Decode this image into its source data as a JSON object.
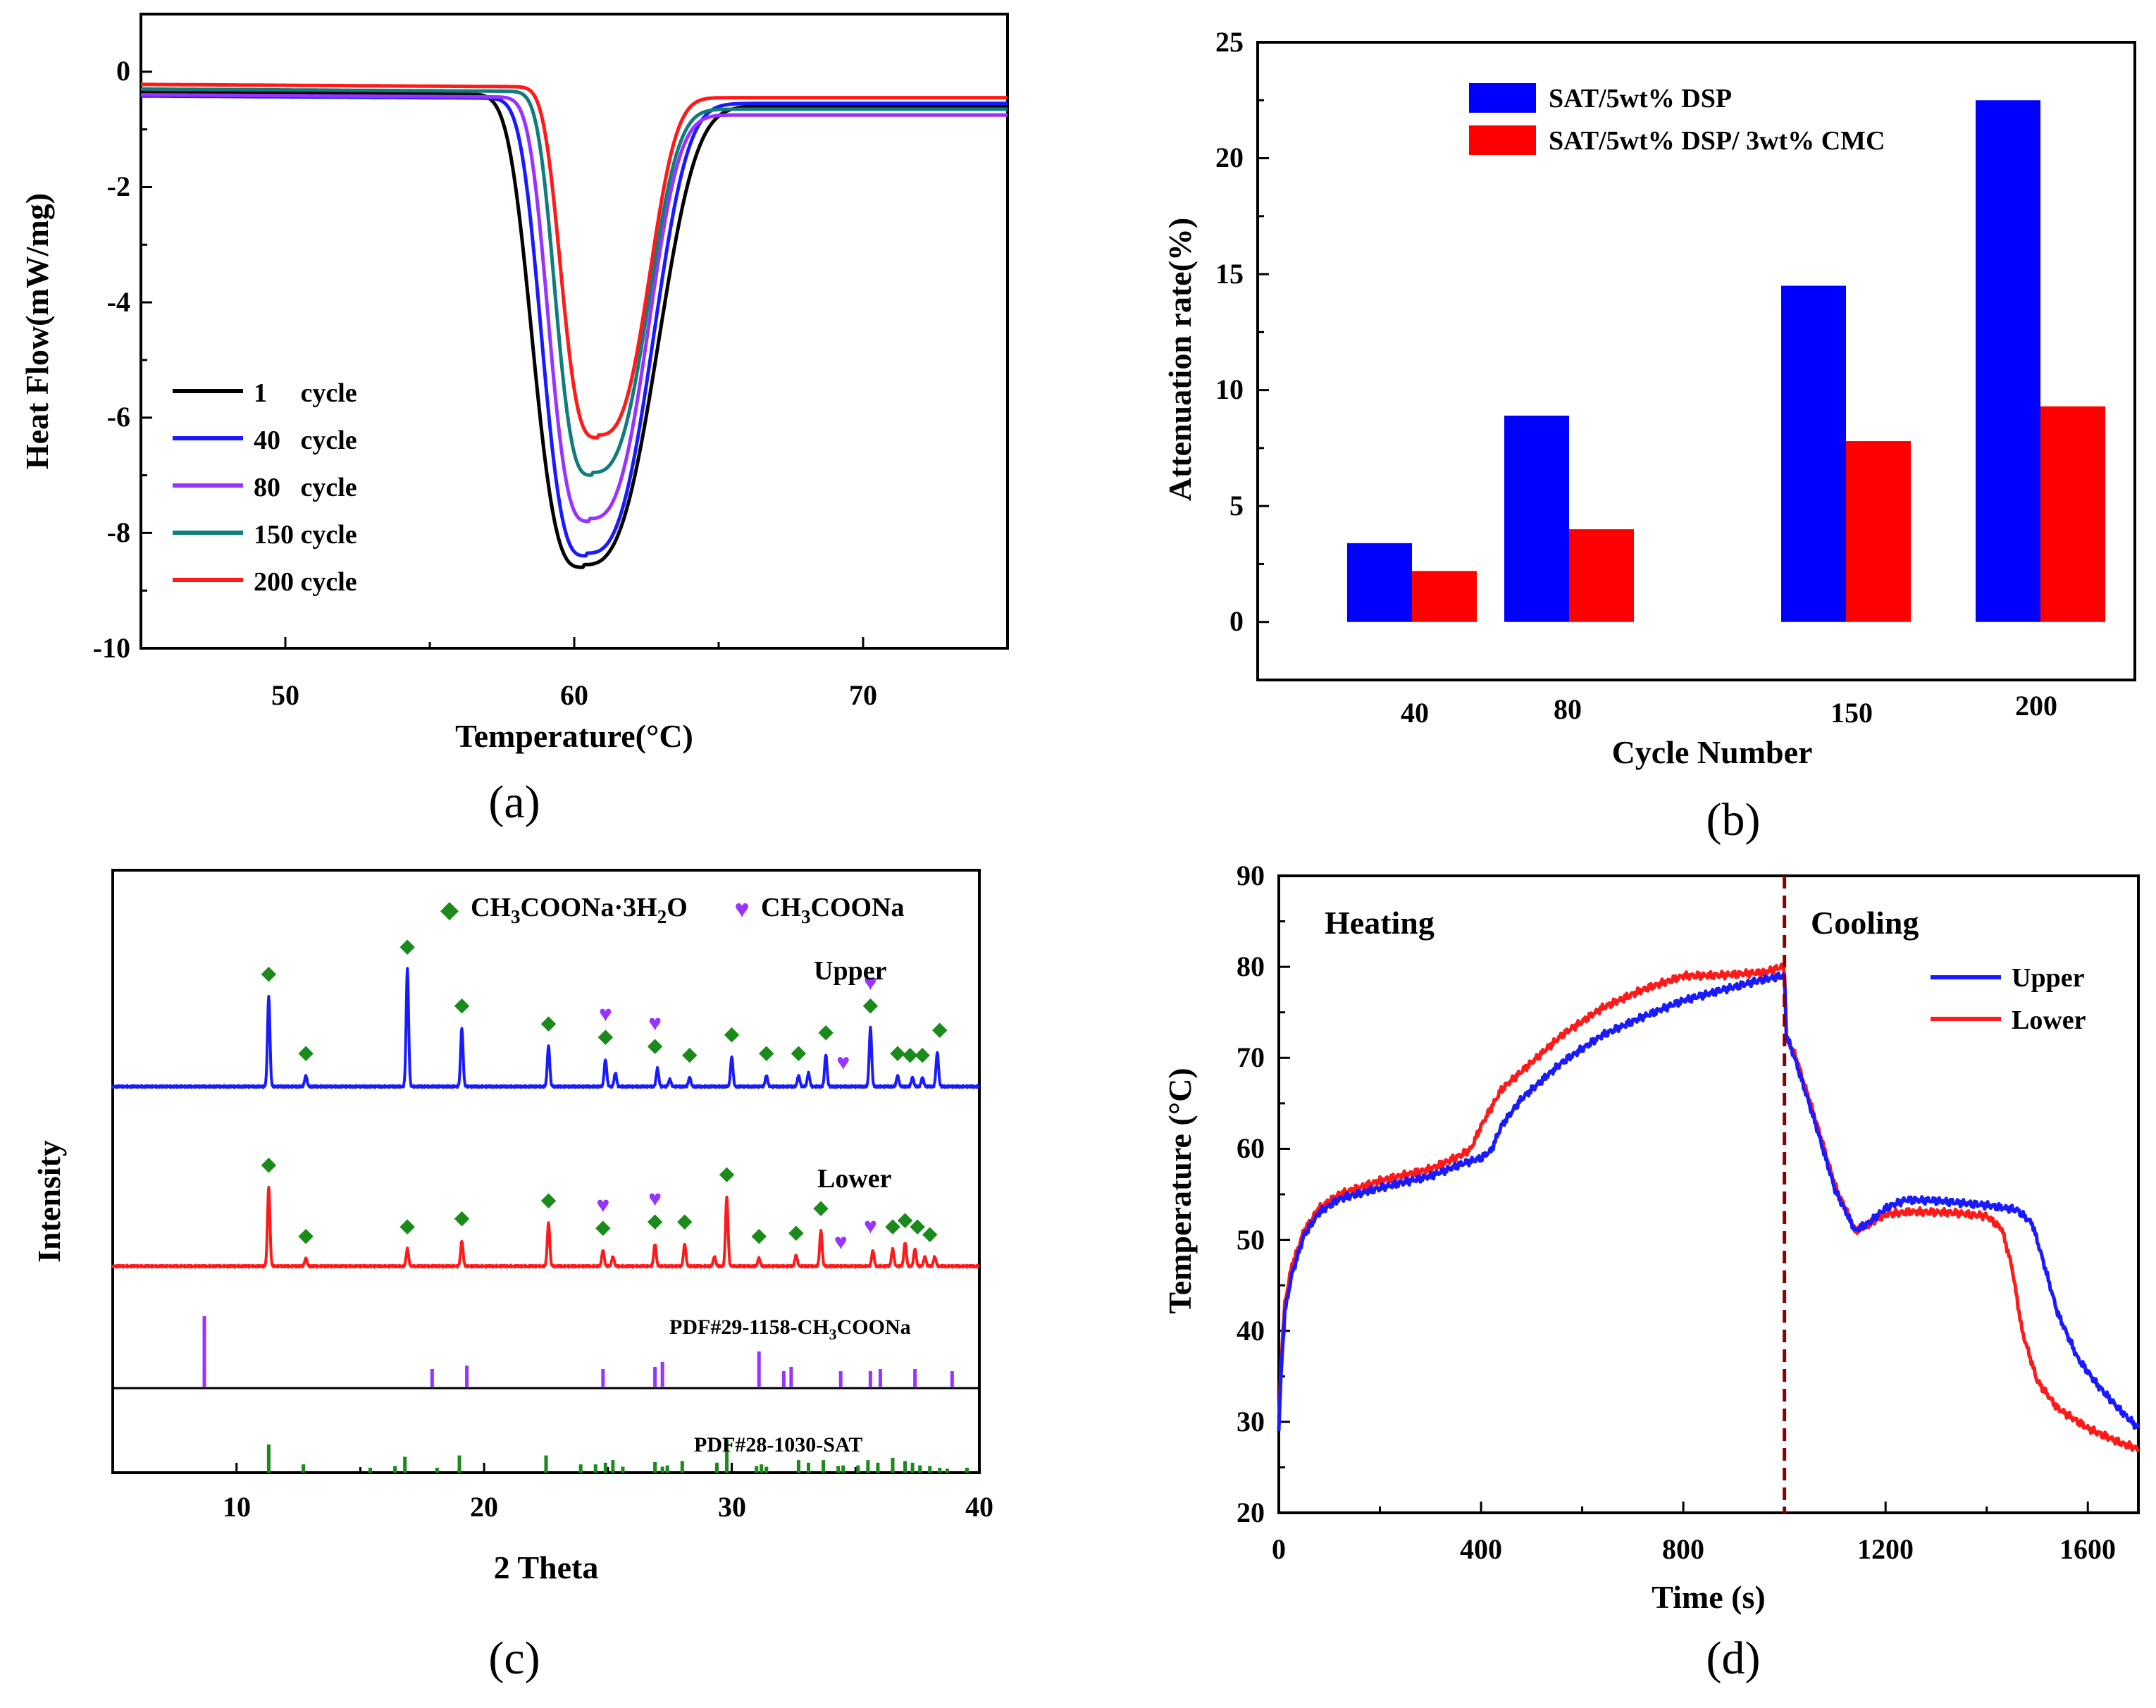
{
  "chart_data": [
    {
      "id": "a",
      "type": "line",
      "panel_label": "(a)",
      "xlabel": "Temperature(°C)",
      "ylabel": "Heat Flow(mW/mg)",
      "xlim": [
        45,
        75
      ],
      "ylim": [
        -10,
        1
      ],
      "xticks": [
        "50",
        "60",
        "70"
      ],
      "yticks": [
        "0",
        "-2",
        "-4",
        "-6",
        "-8",
        "-10"
      ],
      "legend_position": "lower-left",
      "series": [
        {
          "name": "1     cycle",
          "color": "#000000",
          "base_left": -0.35,
          "base_right": -0.6,
          "peak_x": 60.3,
          "peak_y": -8.55,
          "wl": 2.0,
          "wr": 3.0,
          "kl": 3.2,
          "kr": 3.0
        },
        {
          "name": "40   cycle",
          "color": "#1a1aff",
          "base_left": -0.42,
          "base_right": -0.55,
          "peak_x": 60.4,
          "peak_y": -8.35,
          "wl": 1.75,
          "wr": 2.7,
          "kl": 3.2,
          "kr": 3.0
        },
        {
          "name": "80   cycle",
          "color": "#9933ff",
          "base_left": -0.4,
          "base_right": -0.75,
          "peak_x": 60.5,
          "peak_y": -7.75,
          "wl": 1.6,
          "wr": 2.4,
          "kl": 3.2,
          "kr": 3.0
        },
        {
          "name": "150 cycle",
          "color": "#107d7d",
          "base_left": -0.3,
          "base_right": -0.65,
          "peak_x": 60.6,
          "peak_y": -6.95,
          "wl": 1.45,
          "wr": 2.3,
          "kl": 3.2,
          "kr": 3.0
        },
        {
          "name": "200 cycle",
          "color": "#ff1a1a",
          "base_left": -0.22,
          "base_right": -0.45,
          "peak_x": 60.8,
          "peak_y": -6.3,
          "wl": 1.45,
          "wr": 2.1,
          "kl": 3.2,
          "kr": 3.0
        }
      ]
    },
    {
      "id": "b",
      "type": "bar",
      "panel_label": "(b)",
      "xlabel": "Cycle Number",
      "ylabel": "Attenuation rate(%)",
      "categories": [
        "40",
        "80",
        "150",
        "200"
      ],
      "ylim": [
        -2.5,
        25
      ],
      "yticks": [
        "0",
        "5",
        "10",
        "15",
        "20",
        "25"
      ],
      "legend_position": "top-left",
      "series": [
        {
          "name": "SAT/5wt% DSP",
          "color": "#0000ff",
          "values": [
            3.4,
            8.9,
            14.5,
            22.5
          ]
        },
        {
          "name": "SAT/5wt% DSP/ 3wt% CMC",
          "color": "#ff0000",
          "values": [
            2.2,
            4.0,
            7.8,
            9.3
          ]
        }
      ]
    },
    {
      "id": "c",
      "type": "line",
      "panel_label": "(c)",
      "xlabel": "2 Theta",
      "ylabel": "Intensity",
      "xlim": [
        5,
        40
      ],
      "xticks": [
        "10",
        "20",
        "30",
        "40"
      ],
      "legend": [
        {
          "marker": "◆",
          "color": "#1a8a1a",
          "label": "CH",
          "sub1": "3",
          "mid": "COONa·3H",
          "sub2": "2",
          "tail": "O"
        },
        {
          "marker": "♥",
          "color": "#9933ff",
          "label": "CH",
          "sub1": "3",
          "mid": "COONa",
          "sub2": "",
          "tail": ""
        }
      ],
      "series_labels": {
        "upper": "Upper",
        "lower": "Lower"
      },
      "ref_labels": {
        "na": {
          "text": "PDF#29-1158-CH",
          "sub": "3",
          "tail": "COONa"
        },
        "sat": {
          "text": "PDF#28-1030-SAT"
        }
      },
      "upper_peaks": [
        [
          11.3,
          1.0
        ],
        [
          12.8,
          0.12
        ],
        [
          16.9,
          1.3
        ],
        [
          19.1,
          0.65
        ],
        [
          22.6,
          0.45
        ],
        [
          24.9,
          0.3
        ],
        [
          25.3,
          0.15
        ],
        [
          27.0,
          0.2
        ],
        [
          27.5,
          0.08
        ],
        [
          28.3,
          0.1
        ],
        [
          30.0,
          0.33
        ],
        [
          31.4,
          0.12
        ],
        [
          32.7,
          0.12
        ],
        [
          33.1,
          0.15
        ],
        [
          33.8,
          0.35
        ],
        [
          35.6,
          0.65
        ],
        [
          36.7,
          0.12
        ],
        [
          37.3,
          0.1
        ],
        [
          37.7,
          0.1
        ],
        [
          38.3,
          0.38
        ]
      ],
      "lower_peaks": [
        [
          11.3,
          1.0
        ],
        [
          12.8,
          0.1
        ],
        [
          16.9,
          0.22
        ],
        [
          19.1,
          0.32
        ],
        [
          22.6,
          0.55
        ],
        [
          24.8,
          0.2
        ],
        [
          25.2,
          0.12
        ],
        [
          26.9,
          0.28
        ],
        [
          28.1,
          0.28
        ],
        [
          29.3,
          0.12
        ],
        [
          29.8,
          0.88
        ],
        [
          31.1,
          0.1
        ],
        [
          32.6,
          0.14
        ],
        [
          33.6,
          0.45
        ],
        [
          35.7,
          0.2
        ],
        [
          36.5,
          0.22
        ],
        [
          37.0,
          0.3
        ],
        [
          37.4,
          0.22
        ],
        [
          37.8,
          0.12
        ],
        [
          38.2,
          0.12
        ]
      ],
      "upper_markers": [
        [
          "d",
          11.3
        ],
        [
          "d",
          12.8
        ],
        [
          "d",
          16.9
        ],
        [
          "d",
          19.1
        ],
        [
          "d",
          22.6
        ],
        [
          "h",
          24.9
        ],
        [
          "d",
          24.9
        ],
        [
          "h",
          26.9
        ],
        [
          "d",
          26.9
        ],
        [
          "d",
          28.3
        ],
        [
          "d",
          30.0
        ],
        [
          "d",
          31.4
        ],
        [
          "d",
          32.7
        ],
        [
          "h",
          34.5
        ],
        [
          "d",
          33.8
        ],
        [
          "h",
          35.6
        ],
        [
          "d",
          35.6
        ],
        [
          "d",
          36.7
        ],
        [
          "d",
          37.2
        ],
        [
          "d",
          37.7
        ],
        [
          "d",
          38.4
        ]
      ],
      "lower_markers": [
        [
          "d",
          11.3
        ],
        [
          "d",
          12.8
        ],
        [
          "d",
          16.9
        ],
        [
          "d",
          19.1
        ],
        [
          "d",
          22.6
        ],
        [
          "h",
          24.8
        ],
        [
          "d",
          24.8
        ],
        [
          "h",
          26.9
        ],
        [
          "d",
          26.9
        ],
        [
          "d",
          28.1
        ],
        [
          "d",
          29.8
        ],
        [
          "d",
          31.1
        ],
        [
          "d",
          32.6
        ],
        [
          "h",
          34.4
        ],
        [
          "d",
          33.6
        ],
        [
          "h",
          35.6
        ],
        [
          "d",
          36.5
        ],
        [
          "d",
          37.0
        ],
        [
          "d",
          37.5
        ],
        [
          "d",
          38.0
        ]
      ],
      "ref_na": [
        [
          8.7,
          1.0
        ],
        [
          17.9,
          0.25
        ],
        [
          19.3,
          0.3
        ],
        [
          24.8,
          0.25
        ],
        [
          26.9,
          0.28
        ],
        [
          27.2,
          0.35
        ],
        [
          31.1,
          0.5
        ],
        [
          32.1,
          0.22
        ],
        [
          32.4,
          0.28
        ],
        [
          34.4,
          0.22
        ],
        [
          35.6,
          0.22
        ],
        [
          36.0,
          0.25
        ],
        [
          37.4,
          0.25
        ],
        [
          38.9,
          0.22
        ]
      ],
      "ref_sat": [
        [
          11.3,
          0.85
        ],
        [
          12.7,
          0.25
        ],
        [
          15.4,
          0.15
        ],
        [
          16.4,
          0.2
        ],
        [
          16.8,
          0.48
        ],
        [
          18.1,
          0.15
        ],
        [
          19.0,
          0.52
        ],
        [
          22.5,
          0.52
        ],
        [
          23.9,
          0.25
        ],
        [
          24.5,
          0.25
        ],
        [
          24.9,
          0.3
        ],
        [
          25.2,
          0.38
        ],
        [
          25.6,
          0.18
        ],
        [
          26.9,
          0.32
        ],
        [
          27.2,
          0.18
        ],
        [
          27.4,
          0.22
        ],
        [
          28.0,
          0.35
        ],
        [
          29.4,
          0.3
        ],
        [
          29.8,
          1.0
        ],
        [
          31.0,
          0.2
        ],
        [
          31.2,
          0.25
        ],
        [
          31.4,
          0.18
        ],
        [
          32.7,
          0.38
        ],
        [
          33.1,
          0.3
        ],
        [
          33.7,
          0.38
        ],
        [
          34.3,
          0.2
        ],
        [
          34.5,
          0.22
        ],
        [
          35.1,
          0.22
        ],
        [
          35.5,
          0.38
        ],
        [
          35.9,
          0.3
        ],
        [
          36.5,
          0.45
        ],
        [
          37.0,
          0.35
        ],
        [
          37.3,
          0.3
        ],
        [
          37.6,
          0.22
        ],
        [
          38.0,
          0.2
        ],
        [
          38.4,
          0.15
        ],
        [
          38.7,
          0.12
        ],
        [
          39.5,
          0.15
        ]
      ]
    },
    {
      "id": "d",
      "type": "line",
      "panel_label": "(d)",
      "xlabel": "Time (s)",
      "ylabel": "Temperature (°C)",
      "xlim": [
        0,
        1700
      ],
      "ylim": [
        20,
        90
      ],
      "xticks": [
        "0",
        "400",
        "800",
        "1200",
        "1600"
      ],
      "yticks": [
        "20",
        "30",
        "40",
        "50",
        "60",
        "70",
        "80",
        "90"
      ],
      "divider_x": 1000,
      "annotations": {
        "heating": "Heating",
        "cooling": "Cooling"
      },
      "legend_position": "top-right",
      "series": [
        {
          "name": "Upper",
          "color": "#1a1aff",
          "points": [
            [
              0,
              29
            ],
            [
              5,
              36
            ],
            [
              12,
              42
            ],
            [
              25,
              46
            ],
            [
              50,
              50.5
            ],
            [
              80,
              53
            ],
            [
              120,
              54.5
            ],
            [
              200,
              55.7
            ],
            [
              300,
              57.0
            ],
            [
              360,
              58.3
            ],
            [
              400,
              59.0
            ],
            [
              420,
              59.8
            ],
            [
              440,
              62.5
            ],
            [
              480,
              65.5
            ],
            [
              560,
              69.5
            ],
            [
              640,
              72.5
            ],
            [
              720,
              74.5
            ],
            [
              800,
              76.3
            ],
            [
              880,
              77.5
            ],
            [
              950,
              78.5
            ],
            [
              995,
              79.0
            ],
            [
              1000,
              79.0
            ],
            [
              1004,
              72.5
            ],
            [
              1020,
              70.0
            ],
            [
              1060,
              63.0
            ],
            [
              1100,
              55.5
            ],
            [
              1140,
              51.0
            ],
            [
              1170,
              52.0
            ],
            [
              1200,
              53.5
            ],
            [
              1240,
              54.4
            ],
            [
              1300,
              54.3
            ],
            [
              1400,
              53.8
            ],
            [
              1460,
              53.3
            ],
            [
              1490,
              51.8
            ],
            [
              1510,
              48.0
            ],
            [
              1540,
              42.0
            ],
            [
              1580,
              37.0
            ],
            [
              1620,
              34.0
            ],
            [
              1660,
              31.5
            ],
            [
              1700,
              29.3
            ]
          ]
        },
        {
          "name": "Lower",
          "color": "#ff1a1a",
          "points": [
            [
              0,
              30
            ],
            [
              5,
              37
            ],
            [
              12,
              43
            ],
            [
              25,
              47
            ],
            [
              50,
              51
            ],
            [
              80,
              53.5
            ],
            [
              120,
              55.0
            ],
            [
              200,
              56.5
            ],
            [
              300,
              57.8
            ],
            [
              360,
              59.3
            ],
            [
              380,
              60.0
            ],
            [
              400,
              62.5
            ],
            [
              440,
              66.5
            ],
            [
              500,
              69.5
            ],
            [
              560,
              72.5
            ],
            [
              640,
              75.5
            ],
            [
              720,
              77.5
            ],
            [
              800,
              79.0
            ],
            [
              880,
              79.1
            ],
            [
              960,
              79.4
            ],
            [
              995,
              80.0
            ],
            [
              1000,
              79.5
            ],
            [
              1004,
              72.0
            ],
            [
              1020,
              70.5
            ],
            [
              1060,
              63.5
            ],
            [
              1100,
              56.0
            ],
            [
              1140,
              51.0
            ],
            [
              1170,
              51.8
            ],
            [
              1200,
              52.8
            ],
            [
              1250,
              53.1
            ],
            [
              1330,
              53.0
            ],
            [
              1400,
              52.6
            ],
            [
              1430,
              51.2
            ],
            [
              1450,
              47.0
            ],
            [
              1470,
              40.0
            ],
            [
              1500,
              34.5
            ],
            [
              1540,
              31.5
            ],
            [
              1600,
              29.3
            ],
            [
              1660,
              27.8
            ],
            [
              1700,
              27.0
            ]
          ]
        }
      ]
    }
  ]
}
